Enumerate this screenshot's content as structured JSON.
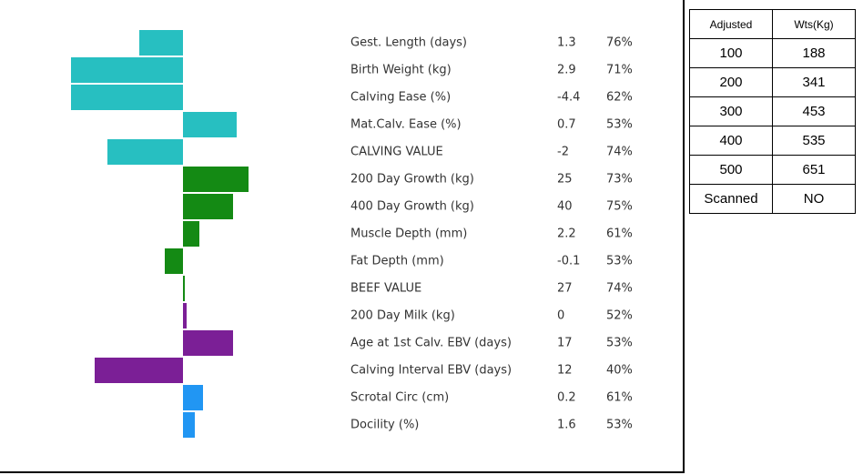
{
  "traits": [
    {
      "label": "Gest. Length (days)",
      "ebv": "1.3",
      "acc": "76%",
      "bar": -48,
      "color": "#27bfc1"
    },
    {
      "label": "Birth Weight (kg)",
      "ebv": "2.9",
      "acc": "71%",
      "bar": -123,
      "color": "#27bfc1"
    },
    {
      "label": "Calving Ease (%)",
      "ebv": "-4.4",
      "acc": "62%",
      "bar": -123,
      "color": "#27bfc1"
    },
    {
      "label": "Mat.Calv. Ease (%)",
      "ebv": "0.7",
      "acc": "53%",
      "bar": 59,
      "color": "#27bfc1"
    },
    {
      "label": "CALVING VALUE",
      "ebv": "-2",
      "acc": "74%",
      "bar": -83,
      "color": "#27bfc1"
    },
    {
      "label": "200 Day Growth (kg)",
      "ebv": "25",
      "acc": "73%",
      "bar": 72,
      "color": "#148a14"
    },
    {
      "label": "400 Day Growth (kg)",
      "ebv": "40",
      "acc": "75%",
      "bar": 55,
      "color": "#148a14"
    },
    {
      "label": "Muscle Depth (mm)",
      "ebv": "2.2",
      "acc": "61%",
      "bar": 18,
      "color": "#148a14"
    },
    {
      "label": "Fat Depth (mm)",
      "ebv": "-0.1",
      "acc": "53%",
      "bar": -20,
      "color": "#148a14"
    },
    {
      "label": "BEEF VALUE",
      "ebv": "27",
      "acc": "74%",
      "bar": 2,
      "color": "#148a14"
    },
    {
      "label": "200 Day Milk (kg)",
      "ebv": "0",
      "acc": "52%",
      "bar": 4,
      "color": "#7b1f96"
    },
    {
      "label": "Age at 1st Calv. EBV (days)",
      "ebv": "17",
      "acc": "53%",
      "bar": 55,
      "color": "#7b1f96"
    },
    {
      "label": "Calving Interval EBV (days)",
      "ebv": "12",
      "acc": "40%",
      "bar": -97,
      "color": "#7b1f96"
    },
    {
      "label": "Scrotal Circ (cm)",
      "ebv": "0.2",
      "acc": "61%",
      "bar": 22,
      "color": "#2196f3"
    },
    {
      "label": "Docility (%)",
      "ebv": "1.6",
      "acc": "53%",
      "bar": 13,
      "color": "#2196f3"
    }
  ],
  "table": {
    "header": [
      "Adjusted",
      "Wts(Kg)"
    ],
    "rows": [
      [
        "100",
        "188"
      ],
      [
        "200",
        "341"
      ],
      [
        "300",
        "453"
      ],
      [
        "400",
        "535"
      ],
      [
        "500",
        "651"
      ],
      [
        "Scanned",
        "NO"
      ]
    ]
  }
}
